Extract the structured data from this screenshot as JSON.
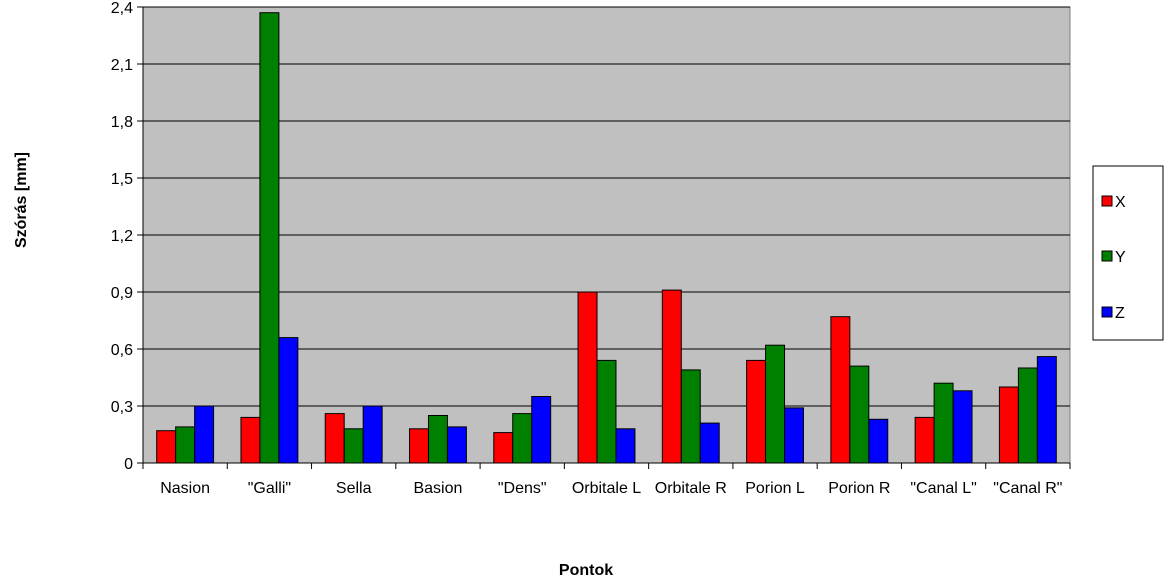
{
  "chart_data": {
    "type": "bar",
    "title": "",
    "xlabel": "Pontok",
    "ylabel": "Szórás [mm]",
    "ylim": [
      0,
      2.4
    ],
    "yticks": [
      "0",
      "0,3",
      "0,6",
      "0,9",
      "1,2",
      "1,5",
      "1,8",
      "2,1",
      "2,4"
    ],
    "grid": true,
    "legend_position": "right",
    "categories": [
      "Nasion",
      "\"Galli\"",
      "Sella",
      "Basion",
      "\"Dens\"",
      "Orbitale L",
      "Orbitale R",
      "Porion L",
      "Porion R",
      "\"Canal L\"",
      "\"Canal R\""
    ],
    "series": [
      {
        "name": "X",
        "color": "#ff0000",
        "values": [
          0.17,
          0.24,
          0.26,
          0.18,
          0.16,
          0.9,
          0.91,
          0.54,
          0.77,
          0.24,
          0.4
        ]
      },
      {
        "name": "Y",
        "color": "#008000",
        "values": [
          0.19,
          2.37,
          0.18,
          0.25,
          0.26,
          0.54,
          0.49,
          0.62,
          0.51,
          0.42,
          0.5
        ]
      },
      {
        "name": "Z",
        "color": "#0000ff",
        "values": [
          0.3,
          0.66,
          0.3,
          0.19,
          0.35,
          0.18,
          0.21,
          0.29,
          0.23,
          0.38,
          0.56
        ]
      }
    ]
  }
}
